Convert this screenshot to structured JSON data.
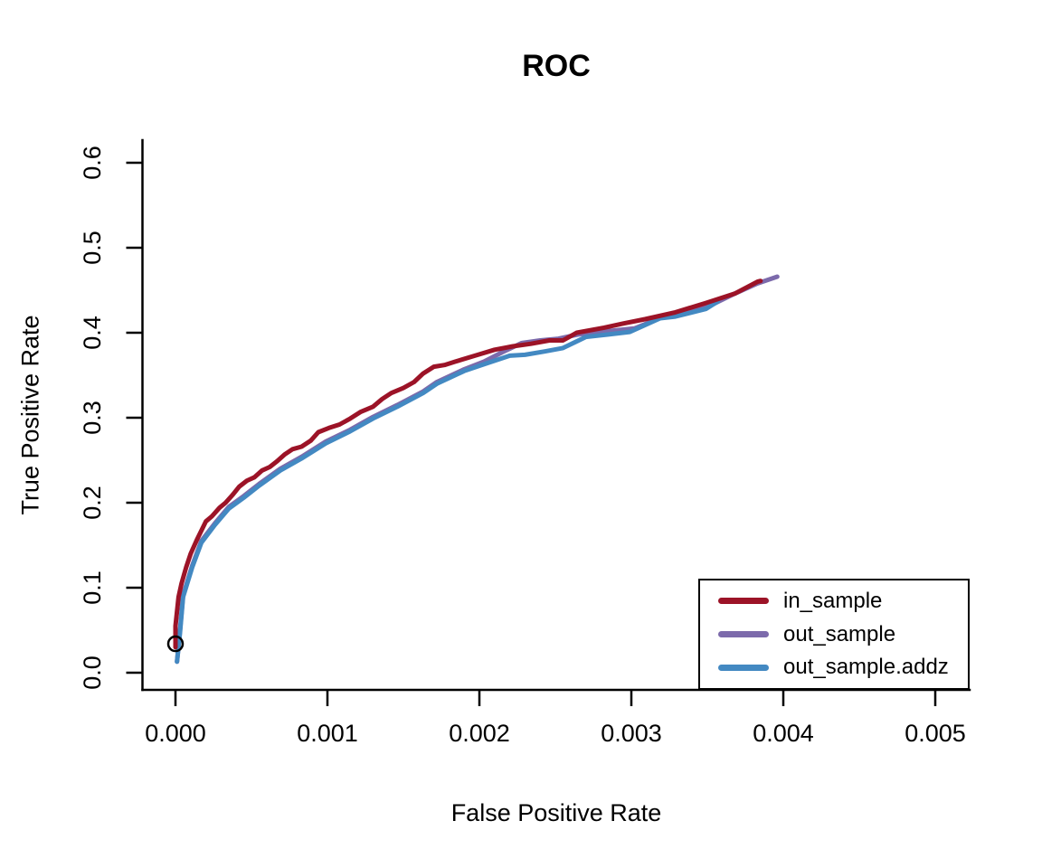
{
  "chart_data": {
    "type": "line",
    "title": "ROC",
    "xlabel": "False Positive Rate",
    "ylabel": "True Positive Rate",
    "xlim": [
      0,
      0.005
    ],
    "ylim": [
      0,
      0.6
    ],
    "grid": false,
    "legend_position": "bottom-right",
    "x_ticks": [
      0,
      0.001,
      0.002,
      0.003,
      0.004,
      0.005
    ],
    "x_tick_labels": [
      "0.000",
      "0.001",
      "0.002",
      "0.003",
      "0.004",
      "0.005"
    ],
    "y_ticks": [
      0,
      0.1,
      0.2,
      0.3,
      0.4,
      0.5,
      0.6
    ],
    "y_tick_labels": [
      "0.0",
      "0.1",
      "0.2",
      "0.3",
      "0.4",
      "0.5",
      "0.6"
    ],
    "marker": {
      "x": 0.0,
      "y": 0.034,
      "shape": "open-circle",
      "color": "#000000"
    },
    "series": [
      {
        "name": "in_sample",
        "color": "#9c1327",
        "points": [
          [
            0.0,
            0.03
          ],
          [
            0.0,
            0.055
          ],
          [
            2e-05,
            0.089
          ],
          [
            4e-05,
            0.105
          ],
          [
            7e-05,
            0.124
          ],
          [
            0.0001,
            0.14
          ],
          [
            0.00014,
            0.156
          ],
          [
            0.0002,
            0.178
          ],
          [
            0.00024,
            0.184
          ],
          [
            0.00029,
            0.194
          ],
          [
            0.00033,
            0.2
          ],
          [
            0.00038,
            0.21
          ],
          [
            0.00042,
            0.219
          ],
          [
            0.00047,
            0.226
          ],
          [
            0.00052,
            0.23
          ],
          [
            0.00057,
            0.238
          ],
          [
            0.00062,
            0.242
          ],
          [
            0.00067,
            0.249
          ],
          [
            0.00072,
            0.257
          ],
          [
            0.00077,
            0.263
          ],
          [
            0.00083,
            0.266
          ],
          [
            0.00089,
            0.273
          ],
          [
            0.00094,
            0.283
          ],
          [
            0.00101,
            0.288
          ],
          [
            0.00108,
            0.292
          ],
          [
            0.00115,
            0.299
          ],
          [
            0.00122,
            0.307
          ],
          [
            0.0013,
            0.313
          ],
          [
            0.00136,
            0.322
          ],
          [
            0.00142,
            0.329
          ],
          [
            0.0015,
            0.335
          ],
          [
            0.00157,
            0.342
          ],
          [
            0.00163,
            0.352
          ],
          [
            0.0017,
            0.36
          ],
          [
            0.00177,
            0.362
          ],
          [
            0.00184,
            0.366
          ],
          [
            0.00197,
            0.373
          ],
          [
            0.0021,
            0.38
          ],
          [
            0.00222,
            0.384
          ],
          [
            0.00234,
            0.387
          ],
          [
            0.00246,
            0.391
          ],
          [
            0.00255,
            0.391
          ],
          [
            0.00264,
            0.4
          ],
          [
            0.00282,
            0.406
          ],
          [
            0.00295,
            0.411
          ],
          [
            0.00309,
            0.416
          ],
          [
            0.00329,
            0.424
          ],
          [
            0.00349,
            0.435
          ],
          [
            0.00368,
            0.446
          ],
          [
            0.00383,
            0.46
          ],
          [
            0.00385,
            0.461
          ]
        ]
      },
      {
        "name": "out_sample",
        "color": "#7c6aab",
        "points": [
          [
            1e-05,
            0.013
          ],
          [
            3e-05,
            0.05
          ],
          [
            5e-05,
            0.091
          ],
          [
            0.00011,
            0.126
          ],
          [
            0.00017,
            0.155
          ],
          [
            0.00026,
            0.176
          ],
          [
            0.00035,
            0.195
          ],
          [
            0.00045,
            0.208
          ],
          [
            0.00055,
            0.222
          ],
          [
            0.00069,
            0.24
          ],
          [
            0.00083,
            0.254
          ],
          [
            0.00099,
            0.272
          ],
          [
            0.00115,
            0.286
          ],
          [
            0.0013,
            0.301
          ],
          [
            0.00146,
            0.315
          ],
          [
            0.00163,
            0.331
          ],
          [
            0.00172,
            0.342
          ],
          [
            0.0019,
            0.357
          ],
          [
            0.00203,
            0.366
          ],
          [
            0.00215,
            0.377
          ],
          [
            0.00228,
            0.388
          ],
          [
            0.0024,
            0.391
          ],
          [
            0.00252,
            0.393
          ],
          [
            0.00265,
            0.398
          ],
          [
            0.00285,
            0.402
          ],
          [
            0.00302,
            0.405
          ],
          [
            0.0032,
            0.418
          ],
          [
            0.00335,
            0.423
          ],
          [
            0.00352,
            0.432
          ],
          [
            0.00368,
            0.446
          ],
          [
            0.00383,
            0.458
          ],
          [
            0.00396,
            0.466
          ]
        ]
      },
      {
        "name": "out_sample.addz",
        "color": "#4389c2",
        "points": [
          [
            1e-05,
            0.013
          ],
          [
            3e-05,
            0.047
          ],
          [
            5e-05,
            0.089
          ],
          [
            0.00011,
            0.124
          ],
          [
            0.00017,
            0.153
          ],
          [
            0.00026,
            0.174
          ],
          [
            0.00035,
            0.193
          ],
          [
            0.00045,
            0.206
          ],
          [
            0.00055,
            0.22
          ],
          [
            0.00069,
            0.238
          ],
          [
            0.00083,
            0.252
          ],
          [
            0.00099,
            0.27
          ],
          [
            0.00115,
            0.284
          ],
          [
            0.0013,
            0.299
          ],
          [
            0.00146,
            0.313
          ],
          [
            0.00163,
            0.329
          ],
          [
            0.00172,
            0.34
          ],
          [
            0.0019,
            0.355
          ],
          [
            0.00205,
            0.364
          ],
          [
            0.0022,
            0.373
          ],
          [
            0.0023,
            0.374
          ],
          [
            0.00243,
            0.378
          ],
          [
            0.00255,
            0.382
          ],
          [
            0.0027,
            0.395
          ],
          [
            0.00285,
            0.398
          ],
          [
            0.00299,
            0.401
          ],
          [
            0.00319,
            0.417
          ],
          [
            0.00329,
            0.419
          ],
          [
            0.00349,
            0.428
          ],
          [
            0.00357,
            0.437
          ]
        ]
      }
    ]
  }
}
